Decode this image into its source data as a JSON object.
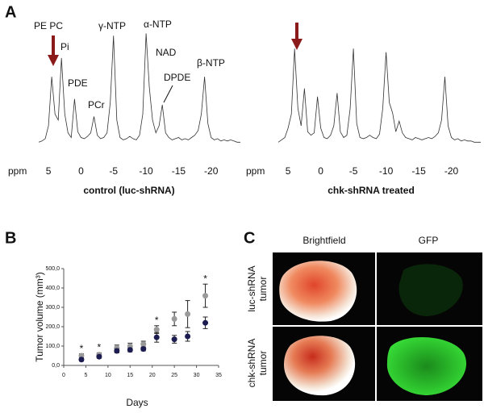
{
  "panel_labels": [
    "A",
    "B",
    "C"
  ],
  "chart_data": [
    {
      "type": "line",
      "xlabel": "control (luc-shRNA)",
      "x_axis_name": "ppm",
      "color": "#333333",
      "x": [
        6.5,
        6,
        5.5,
        5,
        4.5,
        4,
        3.5,
        3,
        2.5,
        2,
        1.5,
        1,
        0.5,
        0,
        -0.5,
        -1,
        -1.5,
        -2,
        -2.5,
        -3,
        -3.5,
        -4,
        -4.5,
        -5,
        -5.5,
        -6,
        -6.5,
        -7,
        -7.5,
        -8,
        -8.5,
        -9,
        -9.5,
        -10,
        -10.5,
        -11,
        -11.5,
        -12,
        -12.5,
        -13,
        -13.5,
        -14,
        -14.5,
        -15,
        -15.5,
        -16,
        -16.5,
        -17,
        -17.5,
        -18,
        -18.5,
        -19,
        -19.5,
        -20,
        -20.5,
        -21,
        -21.5,
        -22,
        -22.5,
        -23,
        -23.5,
        -24,
        -24.5
      ],
      "values": [
        6,
        7,
        9,
        20,
        62,
        30,
        25,
        78,
        30,
        14,
        10,
        43,
        15,
        10,
        9,
        11,
        14,
        28,
        12,
        9,
        10,
        14,
        40,
        97,
        25,
        10,
        8,
        9,
        11,
        9,
        8,
        12,
        30,
        99,
        53,
        25,
        14,
        20,
        38,
        14,
        10,
        8,
        9,
        10,
        8,
        9,
        8,
        10,
        12,
        16,
        30,
        62,
        22,
        10,
        8,
        9,
        7,
        8,
        7,
        8,
        7,
        6,
        6
      ],
      "xlim": [
        6.5,
        -24.5
      ],
      "xticks": [
        5,
        0,
        -5,
        -10,
        -15,
        -20
      ],
      "ylim": [
        0,
        100
      ],
      "annotations": [
        "PE PC",
        "Pi",
        "PDE",
        "PCr",
        "γ-NTP",
        "α-NTP",
        "NAD",
        "DPDE",
        "β-NTP"
      ]
    },
    {
      "type": "line",
      "xlabel": "chk-shRNA treated",
      "x_axis_name": "ppm",
      "color": "#333333",
      "x": [
        6.5,
        6,
        5.5,
        5,
        4.5,
        4,
        3.5,
        3,
        2.5,
        2,
        1.5,
        1,
        0.5,
        0,
        -0.5,
        -1,
        -1.5,
        -2,
        -2.5,
        -3,
        -3.5,
        -4,
        -4.5,
        -5,
        -5.5,
        -6,
        -6.5,
        -7,
        -7.5,
        -8,
        -8.5,
        -9,
        -9.5,
        -10,
        -10.5,
        -11,
        -11.5,
        -12,
        -12.5,
        -13,
        -13.5,
        -14,
        -14.5,
        -15,
        -15.5,
        -16,
        -16.5,
        -17,
        -17.5,
        -18,
        -18.5,
        -19,
        -19.5,
        -20,
        -20.5,
        -21,
        -21.5,
        -22,
        -22.5,
        -23,
        -23.5,
        -24,
        -24.5
      ],
      "values": [
        6,
        8,
        10,
        18,
        30,
        86,
        35,
        20,
        52,
        15,
        12,
        14,
        45,
        18,
        10,
        9,
        12,
        20,
        48,
        15,
        10,
        12,
        35,
        86,
        22,
        10,
        9,
        10,
        12,
        10,
        9,
        13,
        35,
        83,
        40,
        31,
        15,
        24,
        14,
        10,
        9,
        8,
        10,
        9,
        8,
        9,
        10,
        9,
        11,
        14,
        25,
        62,
        20,
        10,
        8,
        9,
        7,
        8,
        7,
        7,
        6,
        6,
        6
      ],
      "xlim": [
        6.5,
        -24.5
      ],
      "xticks": [
        5,
        0,
        -5,
        -10,
        -15,
        -20
      ],
      "ylim": [
        0,
        100
      ]
    },
    {
      "type": "scatter",
      "xlabel": "Days",
      "ylabel": "Tumor volume (mm³)",
      "x": [
        4,
        8,
        12,
        15,
        18,
        21,
        25,
        28,
        32
      ],
      "series": [
        {
          "color": "#9a9a9a",
          "values": [
            50,
            55,
            90,
            100,
            110,
            185,
            240,
            265,
            360
          ],
          "errors": [
            10,
            10,
            15,
            15,
            15,
            20,
            35,
            70,
            60
          ]
        },
        {
          "color": "#1c1c50",
          "values": [
            30,
            45,
            75,
            80,
            85,
            145,
            135,
            150,
            220
          ],
          "errors": [
            8,
            8,
            10,
            10,
            10,
            25,
            20,
            25,
            30
          ]
        }
      ],
      "annotations": [
        {
          "x": 4,
          "text": "*"
        },
        {
          "x": 8,
          "text": "*"
        },
        {
          "x": 21,
          "text": "*"
        },
        {
          "x": 32,
          "text": "*"
        }
      ],
      "xlim": [
        0,
        35
      ],
      "xticks": [
        0,
        5,
        10,
        15,
        20,
        25,
        30,
        35
      ],
      "ylim": [
        0,
        500
      ],
      "yticks": [
        {
          "value": 0,
          "label": "0,0"
        },
        {
          "value": 100,
          "label": "100,0"
        },
        {
          "value": 200,
          "label": "200,0"
        },
        {
          "value": 300,
          "label": "300,0"
        },
        {
          "value": 400,
          "label": "400,0"
        },
        {
          "value": 500,
          "label": "500,0"
        }
      ]
    }
  ],
  "images": {
    "columns": [
      "Brightfield",
      "GFP"
    ],
    "rows": [
      [
        "luc-shRNA",
        "tumor"
      ],
      [
        "chk-shRNA",
        "tumor"
      ]
    ]
  }
}
